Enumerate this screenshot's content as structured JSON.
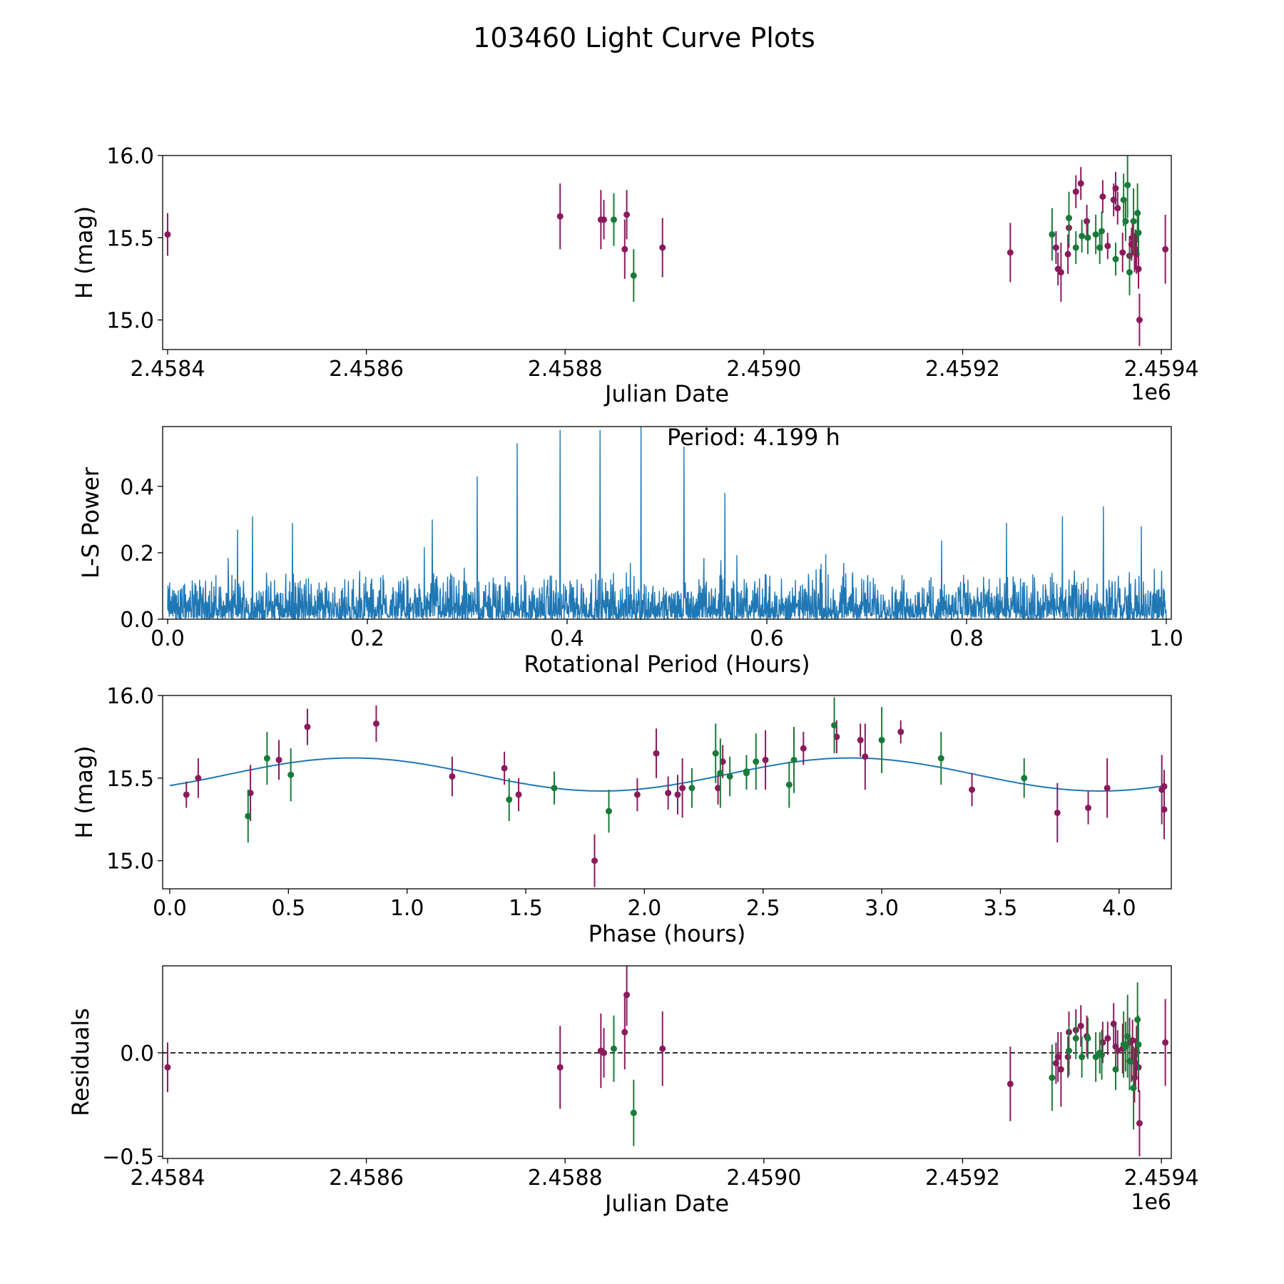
{
  "figure_title": "103460 Light Curve Plots",
  "chart_data": [
    {
      "type": "scatter",
      "panel": "light-curve",
      "xlabel": "Julian Date",
      "ylabel": "H (mag)",
      "x_offset_label": "1e6",
      "xlim": [
        2458395,
        2459410
      ],
      "ylim": [
        14.82,
        16.0
      ],
      "x_ticks": [
        2458400,
        2458600,
        2458800,
        2459000,
        2459200,
        2459400
      ],
      "x_tick_labels": [
        "2.4584",
        "2.4586",
        "2.4588",
        "2.4590",
        "2.4592",
        "2.4594"
      ],
      "y_ticks": [
        15.0,
        15.5,
        16.0
      ],
      "y_tick_labels": [
        "15.0",
        "15.5",
        "16.0"
      ],
      "series": [
        {
          "name": "band-1",
          "color": "#8b1a5c",
          "points": [
            [
              2458400,
              15.52,
              0.13
            ],
            [
              2458795,
              15.63,
              0.2
            ],
            [
              2458836,
              15.61,
              0.18
            ],
            [
              2458839,
              15.61,
              0.12
            ],
            [
              2458860,
              15.43,
              0.18
            ],
            [
              2458862,
              15.64,
              0.15
            ],
            [
              2458898,
              15.44,
              0.18
            ],
            [
              2459248,
              15.41,
              0.18
            ],
            [
              2459294,
              15.44,
              0.1
            ],
            [
              2459296,
              15.31,
              0.1
            ],
            [
              2459299,
              15.29,
              0.18
            ],
            [
              2459306,
              15.4,
              0.12
            ],
            [
              2459307,
              15.56,
              0.12
            ],
            [
              2459314,
              15.78,
              0.1
            ],
            [
              2459319,
              15.83,
              0.1
            ],
            [
              2459325,
              15.6,
              0.1
            ],
            [
              2459341,
              15.75,
              0.1
            ],
            [
              2459346,
              15.45,
              0.08
            ],
            [
              2459352,
              15.73,
              0.1
            ],
            [
              2459354,
              15.8,
              0.1
            ],
            [
              2459356,
              15.68,
              0.1
            ],
            [
              2459361,
              15.41,
              0.12
            ],
            [
              2459368,
              15.39,
              0.12
            ],
            [
              2459370,
              15.46,
              0.1
            ],
            [
              2459371,
              15.5,
              0.1
            ],
            [
              2459373,
              15.41,
              0.12
            ],
            [
              2459374,
              15.43,
              0.12
            ],
            [
              2459375,
              15.4,
              0.12
            ],
            [
              2459377,
              15.31,
              0.12
            ],
            [
              2459378,
              15.0,
              0.16
            ],
            [
              2459404,
              15.43,
              0.21
            ]
          ]
        },
        {
          "name": "band-2",
          "color": "#1a7a3a",
          "points": [
            [
              2458849,
              15.61,
              0.16
            ],
            [
              2458869,
              15.27,
              0.16
            ],
            [
              2459290,
              15.52,
              0.16
            ],
            [
              2459307,
              15.62,
              0.16
            ],
            [
              2459314,
              15.44,
              0.1
            ],
            [
              2459320,
              15.51,
              0.1
            ],
            [
              2459326,
              15.5,
              0.1
            ],
            [
              2459334,
              15.52,
              0.12
            ],
            [
              2459338,
              15.44,
              0.1
            ],
            [
              2459340,
              15.54,
              0.12
            ],
            [
              2459354,
              15.37,
              0.1
            ],
            [
              2459362,
              15.73,
              0.16
            ],
            [
              2459364,
              15.6,
              0.12
            ],
            [
              2459366,
              15.82,
              0.2
            ],
            [
              2459368,
              15.29,
              0.14
            ],
            [
              2459372,
              15.6,
              0.2
            ],
            [
              2459376,
              15.65,
              0.18
            ],
            [
              2459377,
              15.53,
              0.14
            ]
          ]
        }
      ]
    },
    {
      "type": "line",
      "panel": "periodogram",
      "xlabel": "Rotational Period (Hours)",
      "ylabel": "L-S Power",
      "annotation": "Period: 4.199 h",
      "xlim": [
        -0.005,
        1.005
      ],
      "ylim": [
        0,
        0.58
      ],
      "x_ticks": [
        0.0,
        0.2,
        0.4,
        0.6,
        0.8,
        1.0
      ],
      "x_tick_labels": [
        "0.0",
        "0.2",
        "0.4",
        "0.6",
        "0.8",
        "1.0"
      ],
      "y_ticks": [
        0.0,
        0.2,
        0.4
      ],
      "y_tick_labels": [
        "0.0",
        "0.2",
        "0.4"
      ],
      "series": [
        {
          "name": "power",
          "color": "#1f77b4",
          "x_start": 0.0,
          "x_end": 1.0,
          "noise_level": 0.15,
          "peaks": [
            [
              0.07,
              0.27
            ],
            [
              0.085,
              0.31
            ],
            [
              0.125,
              0.29
            ],
            [
              0.265,
              0.3
            ],
            [
              0.31,
              0.43
            ],
            [
              0.35,
              0.53
            ],
            [
              0.393,
              0.57
            ],
            [
              0.433,
              0.57
            ],
            [
              0.474,
              0.58
            ],
            [
              0.517,
              0.52
            ],
            [
              0.558,
              0.38
            ],
            [
              0.84,
              0.29
            ],
            [
              0.896,
              0.31
            ],
            [
              0.937,
              0.34
            ],
            [
              0.975,
              0.28
            ]
          ]
        }
      ]
    },
    {
      "type": "scatter",
      "panel": "phase-folded",
      "xlabel": "Phase (hours)",
      "ylabel": "H (mag)",
      "xlim": [
        -0.03,
        4.22
      ],
      "ylim": [
        14.83,
        16.0
      ],
      "x_ticks": [
        0.0,
        0.5,
        1.0,
        1.5,
        2.0,
        2.5,
        3.0,
        3.5,
        4.0
      ],
      "x_tick_labels": [
        "0.0",
        "0.5",
        "1.0",
        "1.5",
        "2.0",
        "2.5",
        "3.0",
        "3.5",
        "4.0"
      ],
      "y_ticks": [
        15.0,
        15.5,
        16.0
      ],
      "y_tick_labels": [
        "15.0",
        "15.5",
        "16.0"
      ],
      "fit": {
        "color": "#1f77b4",
        "period_h": 4.199,
        "mean": 15.522,
        "amp1": 0.1,
        "phase1": 0.77,
        "amp2": 0.083,
        "phase2": 0.0
      },
      "series": [
        {
          "name": "band-1",
          "color": "#8b1a5c",
          "points": [
            [
              0.07,
              15.4,
              0.08
            ],
            [
              0.12,
              15.5,
              0.12
            ],
            [
              0.34,
              15.41,
              0.17
            ],
            [
              0.46,
              15.61,
              0.12
            ],
            [
              0.58,
              15.81,
              0.11
            ],
            [
              0.87,
              15.83,
              0.11
            ],
            [
              1.19,
              15.51,
              0.12
            ],
            [
              1.41,
              15.56,
              0.1
            ],
            [
              1.47,
              15.4,
              0.1
            ],
            [
              1.79,
              15.0,
              0.16
            ],
            [
              1.97,
              15.4,
              0.1
            ],
            [
              2.05,
              15.65,
              0.15
            ],
            [
              2.1,
              15.41,
              0.1
            ],
            [
              2.14,
              15.4,
              0.12
            ],
            [
              2.16,
              15.44,
              0.18
            ],
            [
              2.31,
              15.44,
              0.1
            ],
            [
              2.33,
              15.6,
              0.1
            ],
            [
              2.51,
              15.61,
              0.18
            ],
            [
              2.67,
              15.68,
              0.1
            ],
            [
              2.81,
              15.75,
              0.1
            ],
            [
              2.91,
              15.73,
              0.1
            ],
            [
              2.93,
              15.63,
              0.2
            ],
            [
              3.08,
              15.78,
              0.07
            ],
            [
              3.38,
              15.43,
              0.1
            ],
            [
              3.74,
              15.29,
              0.18
            ],
            [
              3.87,
              15.32,
              0.1
            ],
            [
              3.95,
              15.44,
              0.18
            ],
            [
              4.18,
              15.43,
              0.21
            ],
            [
              4.19,
              15.45,
              0.1
            ],
            [
              4.19,
              15.31,
              0.18
            ]
          ]
        },
        {
          "name": "band-2",
          "color": "#1a7a3a",
          "points": [
            [
              0.33,
              15.27,
              0.16
            ],
            [
              0.41,
              15.62,
              0.16
            ],
            [
              0.51,
              15.52,
              0.16
            ],
            [
              1.43,
              15.37,
              0.13
            ],
            [
              1.62,
              15.44,
              0.1
            ],
            [
              1.85,
              15.3,
              0.13
            ],
            [
              2.2,
              15.44,
              0.12
            ],
            [
              2.3,
              15.65,
              0.18
            ],
            [
              2.32,
              15.53,
              0.21
            ],
            [
              2.36,
              15.51,
              0.12
            ],
            [
              2.43,
              15.53,
              0.1
            ],
            [
              2.43,
              15.54,
              0.1
            ],
            [
              2.47,
              15.6,
              0.17
            ],
            [
              2.61,
              15.46,
              0.14
            ],
            [
              2.63,
              15.61,
              0.2
            ],
            [
              2.8,
              15.82,
              0.17
            ],
            [
              3.0,
              15.73,
              0.2
            ],
            [
              3.25,
              15.62,
              0.16
            ],
            [
              3.6,
              15.5,
              0.12
            ]
          ]
        }
      ]
    },
    {
      "type": "scatter",
      "panel": "residuals",
      "xlabel": "Julian Date",
      "ylabel": "Residuals",
      "x_offset_label": "1e6",
      "xlim": [
        2458395,
        2459410
      ],
      "ylim": [
        -0.51,
        0.42
      ],
      "x_ticks": [
        2458400,
        2458600,
        2458800,
        2459000,
        2459200,
        2459400
      ],
      "x_tick_labels": [
        "2.4584",
        "2.4586",
        "2.4588",
        "2.4590",
        "2.4592",
        "2.4594"
      ],
      "y_ticks": [
        -0.5,
        0.0
      ],
      "y_tick_labels": [
        "−0.5",
        "0.0"
      ],
      "zero_line": 0.0,
      "series": [
        {
          "name": "band-1",
          "color": "#8b1a5c",
          "points": [
            [
              2458400,
              -0.07,
              0.12
            ],
            [
              2458795,
              -0.07,
              0.2
            ],
            [
              2458836,
              0.01,
              0.18
            ],
            [
              2458839,
              0.0,
              0.12
            ],
            [
              2458860,
              0.1,
              0.18
            ],
            [
              2458862,
              0.28,
              0.15
            ],
            [
              2458898,
              0.02,
              0.18
            ],
            [
              2459248,
              -0.15,
              0.18
            ],
            [
              2459294,
              -0.05,
              0.1
            ],
            [
              2459296,
              -0.02,
              0.12
            ],
            [
              2459299,
              -0.08,
              0.18
            ],
            [
              2459306,
              -0.02,
              0.1
            ],
            [
              2459307,
              0.1,
              0.1
            ],
            [
              2459314,
              0.11,
              0.1
            ],
            [
              2459319,
              0.13,
              0.1
            ],
            [
              2459325,
              0.08,
              0.1
            ],
            [
              2459341,
              0.05,
              0.1
            ],
            [
              2459346,
              0.07,
              0.08
            ],
            [
              2459352,
              0.14,
              0.1
            ],
            [
              2459354,
              0.03,
              0.1
            ],
            [
              2459356,
              0.01,
              0.1
            ],
            [
              2459361,
              0.02,
              0.12
            ],
            [
              2459368,
              0.05,
              0.12
            ],
            [
              2459370,
              -0.04,
              0.1
            ],
            [
              2459371,
              0.06,
              0.1
            ],
            [
              2459373,
              -0.12,
              0.12
            ],
            [
              2459374,
              -0.05,
              0.12
            ],
            [
              2459375,
              0.01,
              0.12
            ],
            [
              2459377,
              -0.07,
              0.12
            ],
            [
              2459378,
              -0.34,
              0.16
            ],
            [
              2459404,
              0.05,
              0.21
            ]
          ]
        },
        {
          "name": "band-2",
          "color": "#1a7a3a",
          "points": [
            [
              2458849,
              0.02,
              0.16
            ],
            [
              2458869,
              -0.29,
              0.16
            ],
            [
              2459290,
              -0.12,
              0.16
            ],
            [
              2459307,
              0.01,
              0.12
            ],
            [
              2459314,
              0.07,
              0.1
            ],
            [
              2459320,
              -0.02,
              0.1
            ],
            [
              2459326,
              0.07,
              0.1
            ],
            [
              2459334,
              -0.02,
              0.12
            ],
            [
              2459338,
              0.0,
              0.1
            ],
            [
              2459340,
              -0.01,
              0.12
            ],
            [
              2459354,
              -0.08,
              0.1
            ],
            [
              2459362,
              0.04,
              0.16
            ],
            [
              2459364,
              0.03,
              0.12
            ],
            [
              2459366,
              0.08,
              0.2
            ],
            [
              2459368,
              -0.04,
              0.14
            ],
            [
              2459372,
              -0.17,
              0.2
            ],
            [
              2459376,
              0.16,
              0.18
            ],
            [
              2459377,
              0.04,
              0.14
            ]
          ]
        }
      ]
    }
  ]
}
